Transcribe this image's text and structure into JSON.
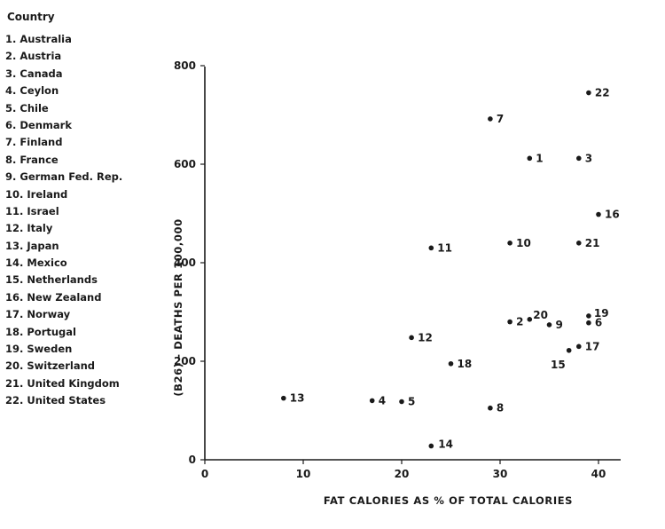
{
  "chart_data": {
    "type": "scatter",
    "xlabel": "FAT CALORIES AS % OF TOTAL CALORIES",
    "ylabel": "(B26) - DEATHS PER 100,000",
    "xlim": [
      0,
      42
    ],
    "ylim": [
      0,
      800
    ],
    "xticks": [
      0,
      10,
      20,
      30,
      40
    ],
    "yticks": [
      0,
      200,
      400,
      600,
      800
    ],
    "grid": false,
    "legend": {
      "title": "Country",
      "placement": "left",
      "items": [
        "1. Australia",
        "2. Austria",
        "3. Canada",
        "4. Ceylon",
        "5. Chile",
        "6. Denmark",
        "7. Finland",
        "8. France",
        "9. German Fed. Rep.",
        "10. Ireland",
        "11. Israel",
        "12. Italy",
        "13. Japan",
        "14. Mexico",
        "15. Netherlands",
        "16. New Zealand",
        "17. Norway",
        "18. Portugal",
        "19. Sweden",
        "20. Switzerland",
        "21. United Kingdom",
        "22. United States"
      ]
    },
    "points": [
      {
        "label": "1",
        "x": 33,
        "y": 612
      },
      {
        "label": "2",
        "x": 31,
        "y": 280
      },
      {
        "label": "3",
        "x": 38,
        "y": 612
      },
      {
        "label": "4",
        "x": 17,
        "y": 120
      },
      {
        "label": "5",
        "x": 20,
        "y": 118
      },
      {
        "label": "6",
        "x": 39,
        "y": 278
      },
      {
        "label": "7",
        "x": 29,
        "y": 692
      },
      {
        "label": "8",
        "x": 29,
        "y": 105
      },
      {
        "label": "9",
        "x": 35,
        "y": 274
      },
      {
        "label": "10",
        "x": 31,
        "y": 440
      },
      {
        "label": "11",
        "x": 23,
        "y": 430
      },
      {
        "label": "12",
        "x": 21,
        "y": 248
      },
      {
        "label": "13",
        "x": 8,
        "y": 125
      },
      {
        "label": "14",
        "x": 23,
        "y": 28
      },
      {
        "label": "15",
        "x": 37,
        "y": 222
      },
      {
        "label": "16",
        "x": 40,
        "y": 498
      },
      {
        "label": "17",
        "x": 38,
        "y": 230
      },
      {
        "label": "18",
        "x": 25,
        "y": 195
      },
      {
        "label": "19",
        "x": 39,
        "y": 292
      },
      {
        "label": "20",
        "x": 33,
        "y": 285
      },
      {
        "label": "21",
        "x": 38,
        "y": 440
      },
      {
        "label": "22",
        "x": 39,
        "y": 745
      }
    ]
  }
}
